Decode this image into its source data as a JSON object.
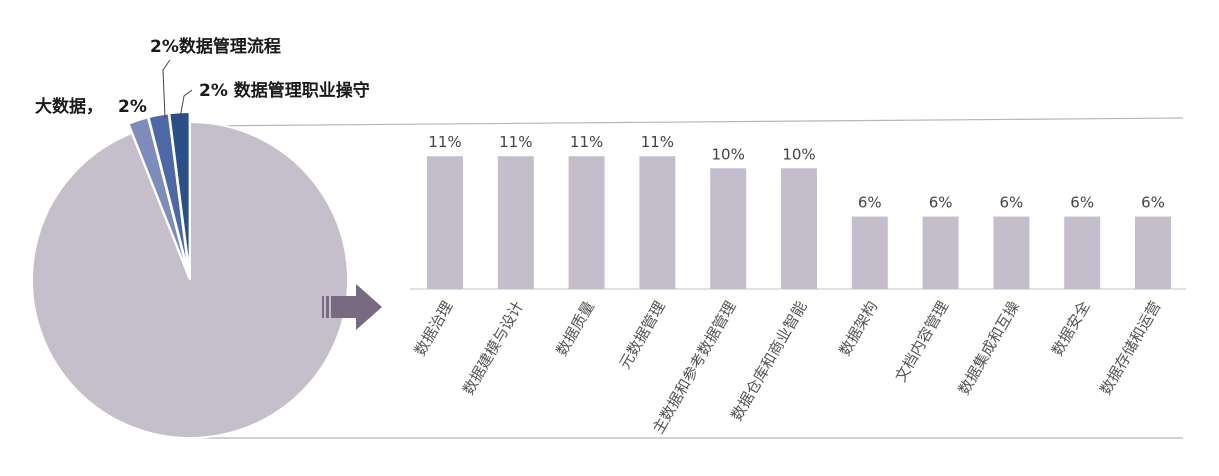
{
  "chart_data": [
    {
      "type": "pie",
      "slices": [
        {
          "label": "大数据，",
          "value_label": "2%",
          "value": 2,
          "color": "#7e8cbb"
        },
        {
          "label": "2%数据管理流程",
          "value_label": "",
          "value": 2,
          "color": "#4e67a5"
        },
        {
          "label": "2% 数据管理职业操守",
          "value_label": "",
          "value": 2,
          "color": "#2b4f87"
        },
        {
          "label": "",
          "value_label": "",
          "value": 94,
          "color": "#c5bfcc"
        }
      ]
    },
    {
      "type": "bar",
      "categories": [
        "数据治理",
        "数据建模与设计",
        "数据质量",
        "元数据管理",
        "主数据和参考数据管理",
        "数据仓库和商业智能",
        "数据架构",
        "文档内容管理",
        "数据集成和互操",
        "数据安全",
        "数据存储和运营"
      ],
      "values": [
        11,
        11,
        11,
        11,
        10,
        10,
        6,
        6,
        6,
        6,
        6
      ],
      "value_labels": [
        "11%",
        "11%",
        "11%",
        "11%",
        "10%",
        "10%",
        "6%",
        "6%",
        "6%",
        "6%",
        "6%"
      ],
      "ylim": [
        0,
        14
      ],
      "bar_color": "#c4bdcb",
      "grid": false
    }
  ],
  "colors": {
    "arrow": "#786a80",
    "connector": "#b7b7b7",
    "baseline": "#cfcfcf"
  }
}
